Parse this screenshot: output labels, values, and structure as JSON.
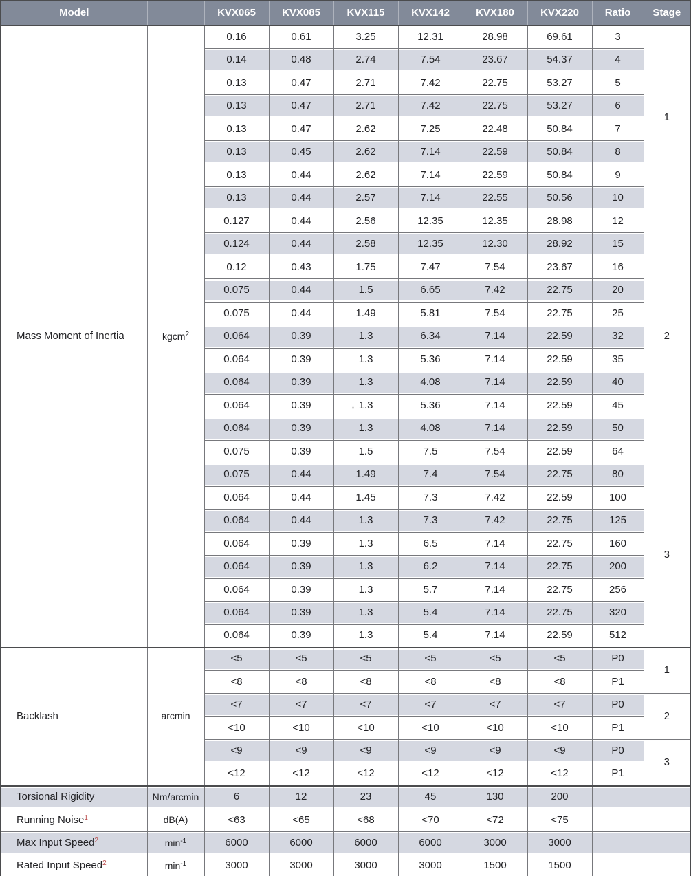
{
  "colors": {
    "header_bg": "#828a99",
    "header_text": "#ffffff",
    "stripe": "#d5d8e1",
    "border_dark": "#4b4c4e",
    "border_light": "#77787c",
    "text": "#232326",
    "footnote_red": "#bb4a4a"
  },
  "header": {
    "columns": [
      "Model",
      "",
      "KVX065",
      "KVX085",
      "KVX115",
      "KVX142",
      "KVX180",
      "KVX220",
      "Ratio",
      "Stage"
    ]
  },
  "inertia": {
    "label": "Mass Moment of Inertia",
    "unit_base": "kgcm",
    "unit_sup": "2",
    "groups": [
      {
        "stage": "1",
        "rows": [
          {
            "ratio": "3",
            "values": [
              "0.16",
              "0.61",
              "3.25",
              "12.31",
              "28.98",
              "69.61"
            ]
          },
          {
            "ratio": "4",
            "values": [
              "0.14",
              "0.48",
              "2.74",
              "7.54",
              "23.67",
              "54.37"
            ]
          },
          {
            "ratio": "5",
            "values": [
              "0.13",
              "0.47",
              "2.71",
              "7.42",
              "22.75",
              "53.27"
            ]
          },
          {
            "ratio": "6",
            "values": [
              "0.13",
              "0.47",
              "2.71",
              "7.42",
              "22.75",
              "53.27"
            ]
          },
          {
            "ratio": "7",
            "values": [
              "0.13",
              "0.47",
              "2.62",
              "7.25",
              "22.48",
              "50.84"
            ]
          },
          {
            "ratio": "8",
            "values": [
              "0.13",
              "0.45",
              "2.62",
              "7.14",
              "22.59",
              "50.84"
            ]
          },
          {
            "ratio": "9",
            "values": [
              "0.13",
              "0.44",
              "2.62",
              "7.14",
              "22.59",
              "50.84"
            ]
          },
          {
            "ratio": "10",
            "values": [
              "0.13",
              "0.44",
              "2.57",
              "7.14",
              "22.55",
              "50.56"
            ]
          }
        ]
      },
      {
        "stage": "2",
        "rows": [
          {
            "ratio": "12",
            "values": [
              "0.127",
              "0.44",
              "2.56",
              "12.35",
              "12.35",
              "28.98"
            ]
          },
          {
            "ratio": "15",
            "values": [
              "0.124",
              "0.44",
              "2.58",
              "12.35",
              "12.30",
              "28.92"
            ]
          },
          {
            "ratio": "16",
            "values": [
              "0.12",
              "0.43",
              "1.75",
              "7.47",
              "7.54",
              "23.67"
            ]
          },
          {
            "ratio": "20",
            "values": [
              "0.075",
              "0.44",
              "1.5",
              "6.65",
              "7.42",
              "22.75"
            ]
          },
          {
            "ratio": "25",
            "values": [
              "0.075",
              "0.44",
              "1.49",
              "5.81",
              "7.54",
              "22.75"
            ]
          },
          {
            "ratio": "32",
            "values": [
              "0.064",
              "0.39",
              "1.3",
              "6.34",
              "7.14",
              "22.59"
            ]
          },
          {
            "ratio": "35",
            "values": [
              "0.064",
              "0.39",
              "1.3",
              "5.36",
              "7.14",
              "22.59"
            ]
          },
          {
            "ratio": "40",
            "values": [
              "0.064",
              "0.39",
              "1.3",
              "4.08",
              "7.14",
              "22.59"
            ]
          },
          {
            "ratio": "45",
            "values": [
              "0.064",
              "0.39",
              "1.3",
              "5.36",
              "7.14",
              "22.59"
            ]
          },
          {
            "ratio": "50",
            "values": [
              "0.064",
              "0.39",
              "1.3",
              "4.08",
              "7.14",
              "22.59"
            ]
          },
          {
            "ratio": "64",
            "values": [
              "0.075",
              "0.39",
              "1.5",
              "7.5",
              "7.54",
              "22.59"
            ]
          }
        ]
      },
      {
        "stage": "3",
        "rows": [
          {
            "ratio": "80",
            "values": [
              "0.075",
              "0.44",
              "1.49",
              "7.4",
              "7.54",
              "22.75"
            ]
          },
          {
            "ratio": "100",
            "values": [
              "0.064",
              "0.44",
              "1.45",
              "7.3",
              "7.42",
              "22.59"
            ]
          },
          {
            "ratio": "125",
            "values": [
              "0.064",
              "0.44",
              "1.3",
              "7.3",
              "7.42",
              "22.75"
            ]
          },
          {
            "ratio": "160",
            "values": [
              "0.064",
              "0.39",
              "1.3",
              "6.5",
              "7.14",
              "22.75"
            ]
          },
          {
            "ratio": "200",
            "values": [
              "0.064",
              "0.39",
              "1.3",
              "6.2",
              "7.14",
              "22.75"
            ]
          },
          {
            "ratio": "256",
            "values": [
              "0.064",
              "0.39",
              "1.3",
              "5.7",
              "7.14",
              "22.75"
            ]
          },
          {
            "ratio": "320",
            "values": [
              "0.064",
              "0.39",
              "1.3",
              "5.4",
              "7.14",
              "22.75"
            ]
          },
          {
            "ratio": "512",
            "values": [
              "0.064",
              "0.39",
              "1.3",
              "5.4",
              "7.14",
              "22.59"
            ]
          }
        ]
      }
    ]
  },
  "backlash": {
    "label": "Backlash",
    "unit_base": "arcmin",
    "unit_sup": "",
    "groups": [
      {
        "stage": "1",
        "rows": [
          {
            "ratio": "P0",
            "values": [
              "<5",
              "<5",
              "<5",
              "<5",
              "<5",
              "<5"
            ]
          },
          {
            "ratio": "P1",
            "values": [
              "<8",
              "<8",
              "<8",
              "<8",
              "<8",
              "<8"
            ]
          }
        ]
      },
      {
        "stage": "2",
        "rows": [
          {
            "ratio": "P0",
            "values": [
              "<7",
              "<7",
              "<7",
              "<7",
              "<7",
              "<7"
            ]
          },
          {
            "ratio": "P1",
            "values": [
              "<10",
              "<10",
              "<10",
              "<10",
              "<10",
              "<10"
            ]
          }
        ]
      },
      {
        "stage": "3",
        "rows": [
          {
            "ratio": "P0",
            "values": [
              "<9",
              "<9",
              "<9",
              "<9",
              "<9",
              "<9"
            ]
          },
          {
            "ratio": "P1",
            "values": [
              "<12",
              "<12",
              "<12",
              "<12",
              "<12",
              "<12"
            ]
          }
        ]
      }
    ]
  },
  "bottom_rows": [
    {
      "label": "Torsional Rigidity",
      "label_sup": "",
      "unit_base": "Nm/arcmin",
      "unit_sup": "",
      "values": [
        "6",
        "12",
        "23",
        "45",
        "130",
        "200"
      ]
    },
    {
      "label": "Running Noise",
      "label_sup": "1",
      "unit_base": "dB(A)",
      "unit_sup": "",
      "values": [
        "<63",
        "<65",
        "<68",
        "<70",
        "<72",
        "<75"
      ]
    },
    {
      "label": "Max Input Speed",
      "label_sup": "2",
      "unit_base": "min",
      "unit_sup": "-1",
      "values": [
        "6000",
        "6000",
        "6000",
        "6000",
        "3000",
        "3000"
      ]
    },
    {
      "label": "Rated Input Speed",
      "label_sup": "2",
      "unit_base": "min",
      "unit_sup": "-1",
      "values": [
        "3000",
        "3000",
        "3000",
        "3000",
        "1500",
        "1500"
      ]
    }
  ],
  "stray_mark": {
    "glyph": "°",
    "section": "inertia",
    "stage": "2",
    "ratio": "45",
    "column": "KVX115"
  }
}
